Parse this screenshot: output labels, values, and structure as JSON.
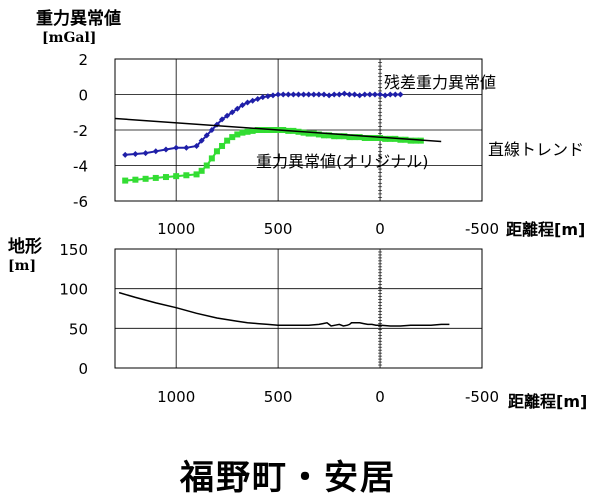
{
  "page_title": "福野町・安居",
  "colors": {
    "residual": "#1f1fa8",
    "original": "#33dd33",
    "trend": "#000000",
    "terrain": "#000000",
    "grid": "#000000"
  },
  "chart_data": [
    {
      "type": "line",
      "ylabel_line1": "重力異常値",
      "ylabel_line2": "[mGal]",
      "xlabel": "距離程[m]",
      "xlim": [
        1300,
        -500
      ],
      "ylim": [
        -6,
        2
      ],
      "x_ticks": [
        "1000",
        "500",
        "0",
        "-500"
      ],
      "y_ticks": [
        "2",
        "0",
        "-2",
        "-4",
        "-6"
      ],
      "grid": true,
      "series": [
        {
          "name": "残差重力異常値",
          "color": "#1f1fa8",
          "marker": "diamond",
          "x": [
            1250,
            1200,
            1150,
            1100,
            1050,
            1000,
            950,
            900,
            875,
            850,
            825,
            800,
            775,
            750,
            725,
            700,
            675,
            650,
            625,
            600,
            575,
            550,
            525,
            500,
            475,
            450,
            425,
            400,
            375,
            350,
            325,
            300,
            275,
            250,
            225,
            200,
            175,
            150,
            125,
            100,
            75,
            50,
            25,
            0,
            -25,
            -50,
            -75,
            -100
          ],
          "y": [
            -3.4,
            -3.35,
            -3.3,
            -3.2,
            -3.1,
            -3.0,
            -3.0,
            -2.9,
            -2.6,
            -2.3,
            -2.0,
            -1.7,
            -1.4,
            -1.2,
            -1.0,
            -0.8,
            -0.6,
            -0.45,
            -0.35,
            -0.25,
            -0.15,
            -0.1,
            -0.05,
            0.0,
            0.0,
            0.0,
            0.0,
            0.0,
            0.0,
            0.0,
            0.0,
            0.0,
            0.0,
            -0.05,
            0.0,
            0.0,
            0.05,
            0.0,
            0.0,
            -0.05,
            0.0,
            0.0,
            0.0,
            0.0,
            -0.05,
            0.0,
            0.0,
            0.0
          ]
        },
        {
          "name": "重力異常値(オリジナル)",
          "color": "#33dd33",
          "marker": "square",
          "x": [
            1250,
            1200,
            1150,
            1100,
            1050,
            1000,
            950,
            900,
            875,
            850,
            825,
            800,
            775,
            750,
            725,
            700,
            675,
            650,
            625,
            600,
            575,
            550,
            525,
            500,
            475,
            450,
            425,
            400,
            375,
            350,
            325,
            300,
            275,
            250,
            225,
            200,
            175,
            150,
            125,
            100,
            75,
            50,
            25,
            0,
            -25,
            -50,
            -75,
            -100,
            -125,
            -150,
            -175,
            -200
          ],
          "y": [
            -4.85,
            -4.8,
            -4.75,
            -4.7,
            -4.65,
            -4.6,
            -4.55,
            -4.5,
            -4.3,
            -4.0,
            -3.6,
            -3.2,
            -2.9,
            -2.6,
            -2.4,
            -2.25,
            -2.15,
            -2.1,
            -2.05,
            -2.0,
            -2.0,
            -2.0,
            -2.0,
            -2.0,
            -2.0,
            -2.05,
            -2.05,
            -2.1,
            -2.15,
            -2.2,
            -2.2,
            -2.25,
            -2.3,
            -2.3,
            -2.35,
            -2.35,
            -2.35,
            -2.4,
            -2.4,
            -2.4,
            -2.45,
            -2.45,
            -2.45,
            -2.45,
            -2.5,
            -2.5,
            -2.5,
            -2.55,
            -2.55,
            -2.6,
            -2.6,
            -2.6
          ]
        },
        {
          "name": "直線トレンド",
          "color": "#000000",
          "marker": "none",
          "x": [
            1300,
            -300
          ],
          "y": [
            -1.35,
            -2.65
          ]
        }
      ]
    },
    {
      "type": "line",
      "ylabel_line1": "地形",
      "ylabel_line2": "[m]",
      "xlabel": "距離程[m]",
      "xlim": [
        1300,
        -500
      ],
      "ylim": [
        0,
        150
      ],
      "x_ticks": [
        "1000",
        "500",
        "0",
        "-500"
      ],
      "y_ticks": [
        "150",
        "100",
        "50",
        "0"
      ],
      "grid": true,
      "series": [
        {
          "color": "#000000",
          "marker": "none",
          "x": [
            1280,
            1200,
            1100,
            1000,
            900,
            800,
            700,
            650,
            600,
            550,
            500,
            450,
            400,
            350,
            300,
            280,
            260,
            250,
            240,
            220,
            200,
            180,
            160,
            150,
            140,
            120,
            100,
            80,
            60,
            40,
            20,
            0,
            -50,
            -100,
            -150,
            -200,
            -250,
            -300,
            -340
          ],
          "y": [
            95,
            89,
            82,
            76,
            69,
            63,
            59,
            57,
            56,
            55,
            54,
            54,
            54,
            54,
            55,
            56,
            57,
            55,
            53,
            54,
            55,
            53,
            54,
            55,
            57,
            57,
            57,
            56,
            55,
            55,
            54,
            54,
            53,
            53,
            54,
            54,
            54,
            55,
            55
          ]
        }
      ]
    }
  ]
}
